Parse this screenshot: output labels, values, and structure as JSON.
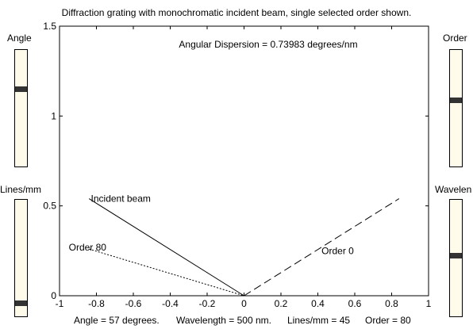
{
  "title": "Diffraction grating with monochromatic incident beam, single selected order shown.",
  "dispersion_text": "Angular Dispersion = 0.73983 degrees/nm",
  "sliders": {
    "angle": {
      "label": "Angle",
      "level": 0.67
    },
    "lines": {
      "label": "Lines/mm",
      "level": 0.09
    },
    "order": {
      "label": "Order",
      "level": 0.57
    },
    "wavelength": {
      "label": "Wavelen",
      "level": 0.52
    }
  },
  "status": {
    "angle": "Angle = 57 degrees.",
    "wavelength": "Wavelength = 500 nm.",
    "lines": "Lines/mm = 45",
    "order": "Order = 80"
  },
  "chart_data": {
    "type": "line",
    "xlim": [
      -1,
      1
    ],
    "ylim": [
      0,
      1.5
    ],
    "x_ticks": [
      "-1",
      "-0.8",
      "-0.6",
      "-0.4",
      "-0.2",
      "0",
      "0.2",
      "0.4",
      "0.6",
      "0.8",
      "1"
    ],
    "y_ticks": [
      "0",
      "0.5",
      "1",
      "1.5"
    ],
    "grid": false,
    "series": [
      {
        "name": "Incident beam",
        "style": "solid",
        "points": [
          [
            -0.84,
            0.54
          ],
          [
            0,
            0
          ]
        ]
      },
      {
        "name": "Order 80",
        "style": "dotted",
        "points": [
          [
            -0.84,
            0.26
          ],
          [
            0,
            0
          ]
        ]
      },
      {
        "name": "Order 0",
        "style": "dashed",
        "points": [
          [
            0,
            0
          ],
          [
            0.84,
            0.54
          ]
        ]
      }
    ],
    "annotations": [
      {
        "text": "Incident beam",
        "x": -0.83,
        "y": 0.54
      },
      {
        "text": "Order 80",
        "x": -0.95,
        "y": 0.27
      },
      {
        "text": "Order 0",
        "x": 0.42,
        "y": 0.25
      }
    ]
  }
}
